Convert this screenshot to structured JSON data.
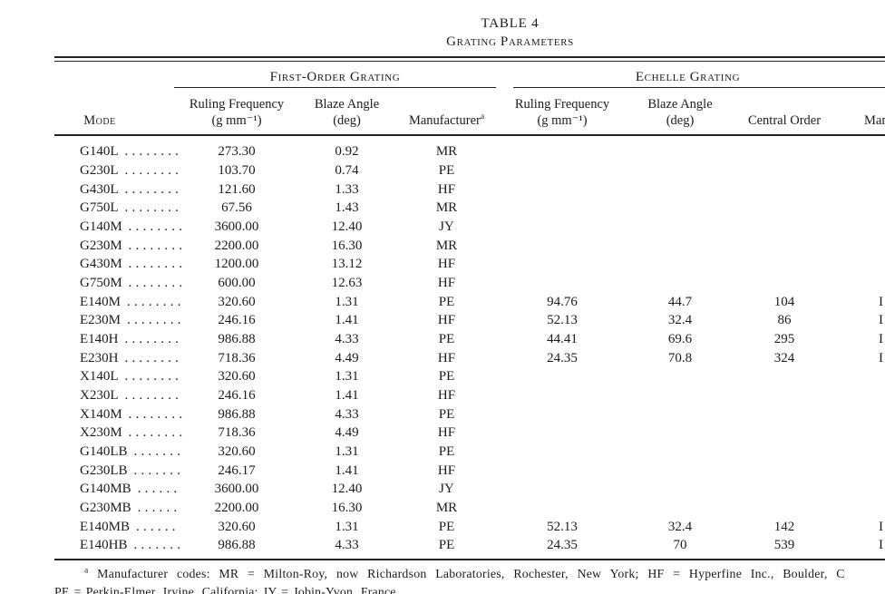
{
  "title": "TABLE 4",
  "subtitle": "Grating Parameters",
  "header": {
    "group_first_order": "First-Order Grating",
    "group_echelle": "Echelle Grating",
    "col_mode": "Mode",
    "col_ruling_frequency": "Ruling Frequency",
    "col_ruling_frequency_units": "(g mm⁻¹)",
    "col_blaze_angle": "Blaze Angle",
    "col_blaze_angle_units": "(deg)",
    "col_manufacturer": "Manufacturer",
    "col_manufacturer_sup": "a",
    "col_central_order": "Central Order",
    "col_manufacturer_echelle": "Manufacturer"
  },
  "rows": [
    {
      "mode": "G140L",
      "leader_dots": 8,
      "fo_ruling": "273.30",
      "fo_blaze": "0.92",
      "fo_manufacturer": "MR",
      "ech_ruling": "",
      "ech_blaze": "",
      "ech_central_order": "",
      "ech_manufacturer_clipped": false
    },
    {
      "mode": "G230L",
      "leader_dots": 8,
      "fo_ruling": "103.70",
      "fo_blaze": "0.74",
      "fo_manufacturer": "PE",
      "ech_ruling": "",
      "ech_blaze": "",
      "ech_central_order": "",
      "ech_manufacturer_clipped": false
    },
    {
      "mode": "G430L",
      "leader_dots": 8,
      "fo_ruling": "121.60",
      "fo_blaze": "1.33",
      "fo_manufacturer": "HF",
      "ech_ruling": "",
      "ech_blaze": "",
      "ech_central_order": "",
      "ech_manufacturer_clipped": false
    },
    {
      "mode": "G750L",
      "leader_dots": 8,
      "fo_ruling": "67.56",
      "fo_blaze": "1.43",
      "fo_manufacturer": "MR",
      "ech_ruling": "",
      "ech_blaze": "",
      "ech_central_order": "",
      "ech_manufacturer_clipped": false
    },
    {
      "mode": "G140M",
      "leader_dots": 8,
      "fo_ruling": "3600.00",
      "fo_blaze": "12.40",
      "fo_manufacturer": "JY",
      "ech_ruling": "",
      "ech_blaze": "",
      "ech_central_order": "",
      "ech_manufacturer_clipped": false
    },
    {
      "mode": "G230M",
      "leader_dots": 8,
      "fo_ruling": "2200.00",
      "fo_blaze": "16.30",
      "fo_manufacturer": "MR",
      "ech_ruling": "",
      "ech_blaze": "",
      "ech_central_order": "",
      "ech_manufacturer_clipped": false
    },
    {
      "mode": "G430M",
      "leader_dots": 8,
      "fo_ruling": "1200.00",
      "fo_blaze": "13.12",
      "fo_manufacturer": "HF",
      "ech_ruling": "",
      "ech_blaze": "",
      "ech_central_order": "",
      "ech_manufacturer_clipped": false
    },
    {
      "mode": "G750M",
      "leader_dots": 8,
      "fo_ruling": "600.00",
      "fo_blaze": "12.63",
      "fo_manufacturer": "HF",
      "ech_ruling": "",
      "ech_blaze": "",
      "ech_central_order": "",
      "ech_manufacturer_clipped": false
    },
    {
      "mode": "E140M",
      "leader_dots": 8,
      "fo_ruling": "320.60",
      "fo_blaze": "1.31",
      "fo_manufacturer": "PE",
      "ech_ruling": "94.76",
      "ech_blaze": "44.7",
      "ech_central_order": "104",
      "ech_manufacturer_clipped": true
    },
    {
      "mode": "E230M",
      "leader_dots": 8,
      "fo_ruling": "246.16",
      "fo_blaze": "1.41",
      "fo_manufacturer": "HF",
      "ech_ruling": "52.13",
      "ech_blaze": "32.4",
      "ech_central_order": "86",
      "ech_manufacturer_clipped": true
    },
    {
      "mode": "E140H",
      "leader_dots": 8,
      "fo_ruling": "986.88",
      "fo_blaze": "4.33",
      "fo_manufacturer": "PE",
      "ech_ruling": "44.41",
      "ech_blaze": "69.6",
      "ech_central_order": "295",
      "ech_manufacturer_clipped": true
    },
    {
      "mode": "E230H",
      "leader_dots": 8,
      "fo_ruling": "718.36",
      "fo_blaze": "4.49",
      "fo_manufacturer": "HF",
      "ech_ruling": "24.35",
      "ech_blaze": "70.8",
      "ech_central_order": "324",
      "ech_manufacturer_clipped": true
    },
    {
      "mode": "X140L",
      "leader_dots": 8,
      "fo_ruling": "320.60",
      "fo_blaze": "1.31",
      "fo_manufacturer": "PE",
      "ech_ruling": "",
      "ech_blaze": "",
      "ech_central_order": "",
      "ech_manufacturer_clipped": false
    },
    {
      "mode": "X230L",
      "leader_dots": 8,
      "fo_ruling": "246.16",
      "fo_blaze": "1.41",
      "fo_manufacturer": "HF",
      "ech_ruling": "",
      "ech_blaze": "",
      "ech_central_order": "",
      "ech_manufacturer_clipped": false
    },
    {
      "mode": "X140M",
      "leader_dots": 8,
      "fo_ruling": "986.88",
      "fo_blaze": "4.33",
      "fo_manufacturer": "PE",
      "ech_ruling": "",
      "ech_blaze": "",
      "ech_central_order": "",
      "ech_manufacturer_clipped": false
    },
    {
      "mode": "X230M",
      "leader_dots": 8,
      "fo_ruling": "718.36",
      "fo_blaze": "4.49",
      "fo_manufacturer": "HF",
      "ech_ruling": "",
      "ech_blaze": "",
      "ech_central_order": "",
      "ech_manufacturer_clipped": false
    },
    {
      "mode": "G140LB",
      "leader_dots": 7,
      "fo_ruling": "320.60",
      "fo_blaze": "1.31",
      "fo_manufacturer": "PE",
      "ech_ruling": "",
      "ech_blaze": "",
      "ech_central_order": "",
      "ech_manufacturer_clipped": false
    },
    {
      "mode": "G230LB",
      "leader_dots": 7,
      "fo_ruling": "246.17",
      "fo_blaze": "1.41",
      "fo_manufacturer": "HF",
      "ech_ruling": "",
      "ech_blaze": "",
      "ech_central_order": "",
      "ech_manufacturer_clipped": false
    },
    {
      "mode": "G140MB",
      "leader_dots": 6,
      "fo_ruling": "3600.00",
      "fo_blaze": "12.40",
      "fo_manufacturer": "JY",
      "ech_ruling": "",
      "ech_blaze": "",
      "ech_central_order": "",
      "ech_manufacturer_clipped": false
    },
    {
      "mode": "G230MB",
      "leader_dots": 6,
      "fo_ruling": "2200.00",
      "fo_blaze": "16.30",
      "fo_manufacturer": "MR",
      "ech_ruling": "",
      "ech_blaze": "",
      "ech_central_order": "",
      "ech_manufacturer_clipped": false
    },
    {
      "mode": "E140MB",
      "leader_dots": 6,
      "fo_ruling": "320.60",
      "fo_blaze": "1.31",
      "fo_manufacturer": "PE",
      "ech_ruling": "52.13",
      "ech_blaze": "32.4",
      "ech_central_order": "142",
      "ech_manufacturer_clipped": true
    },
    {
      "mode": "E140HB",
      "leader_dots": 7,
      "fo_ruling": "986.88",
      "fo_blaze": "4.33",
      "fo_manufacturer": "PE",
      "ech_ruling": "24.35",
      "ech_blaze": "70",
      "ech_central_order": "539",
      "ech_manufacturer_clipped": true
    }
  ],
  "footnote": {
    "marker": "a",
    "line1": "Manufacturer codes: MR = Milton-Roy, now Richardson Laboratories, Rochester, New York; HF = Hyperfine Inc., Boulder, C",
    "line2": "PE = Perkin-Elmer, Irvine, California; JY = Jobin-Yvon, France."
  },
  "colors": {
    "text": "#1b1b1b",
    "background": "#ffffff",
    "rule": "#222222"
  }
}
